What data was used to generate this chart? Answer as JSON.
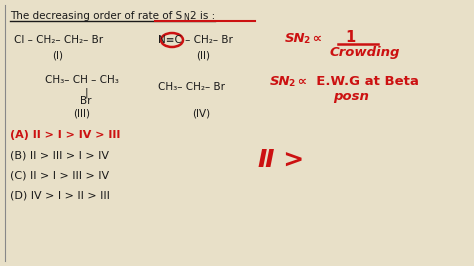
{
  "bg_color": "#e8e0c8",
  "compound_I": "Cl– CH₂– CH₂– Br",
  "compound_I_label": "(I)",
  "compound_II": "N≡C – CH₂– Br",
  "compound_II_label": "(II)",
  "compound_III_line1": "CH₃– CH– CH₃",
  "compound_III_sub": "Br",
  "compound_III_label": "(III)",
  "compound_IV": "CH₃– CH₂– Br",
  "compound_IV_label": "(IV)",
  "option_A": "(A) II > I > IV > III",
  "option_B": "(B) II > III > I > IV",
  "option_C": "(C) II > I > III > IV",
  "option_D": "(D) IV > I > II > III",
  "red_color": "#cc1111",
  "black_color": "#1a1a1a",
  "gray_color": "#555555"
}
